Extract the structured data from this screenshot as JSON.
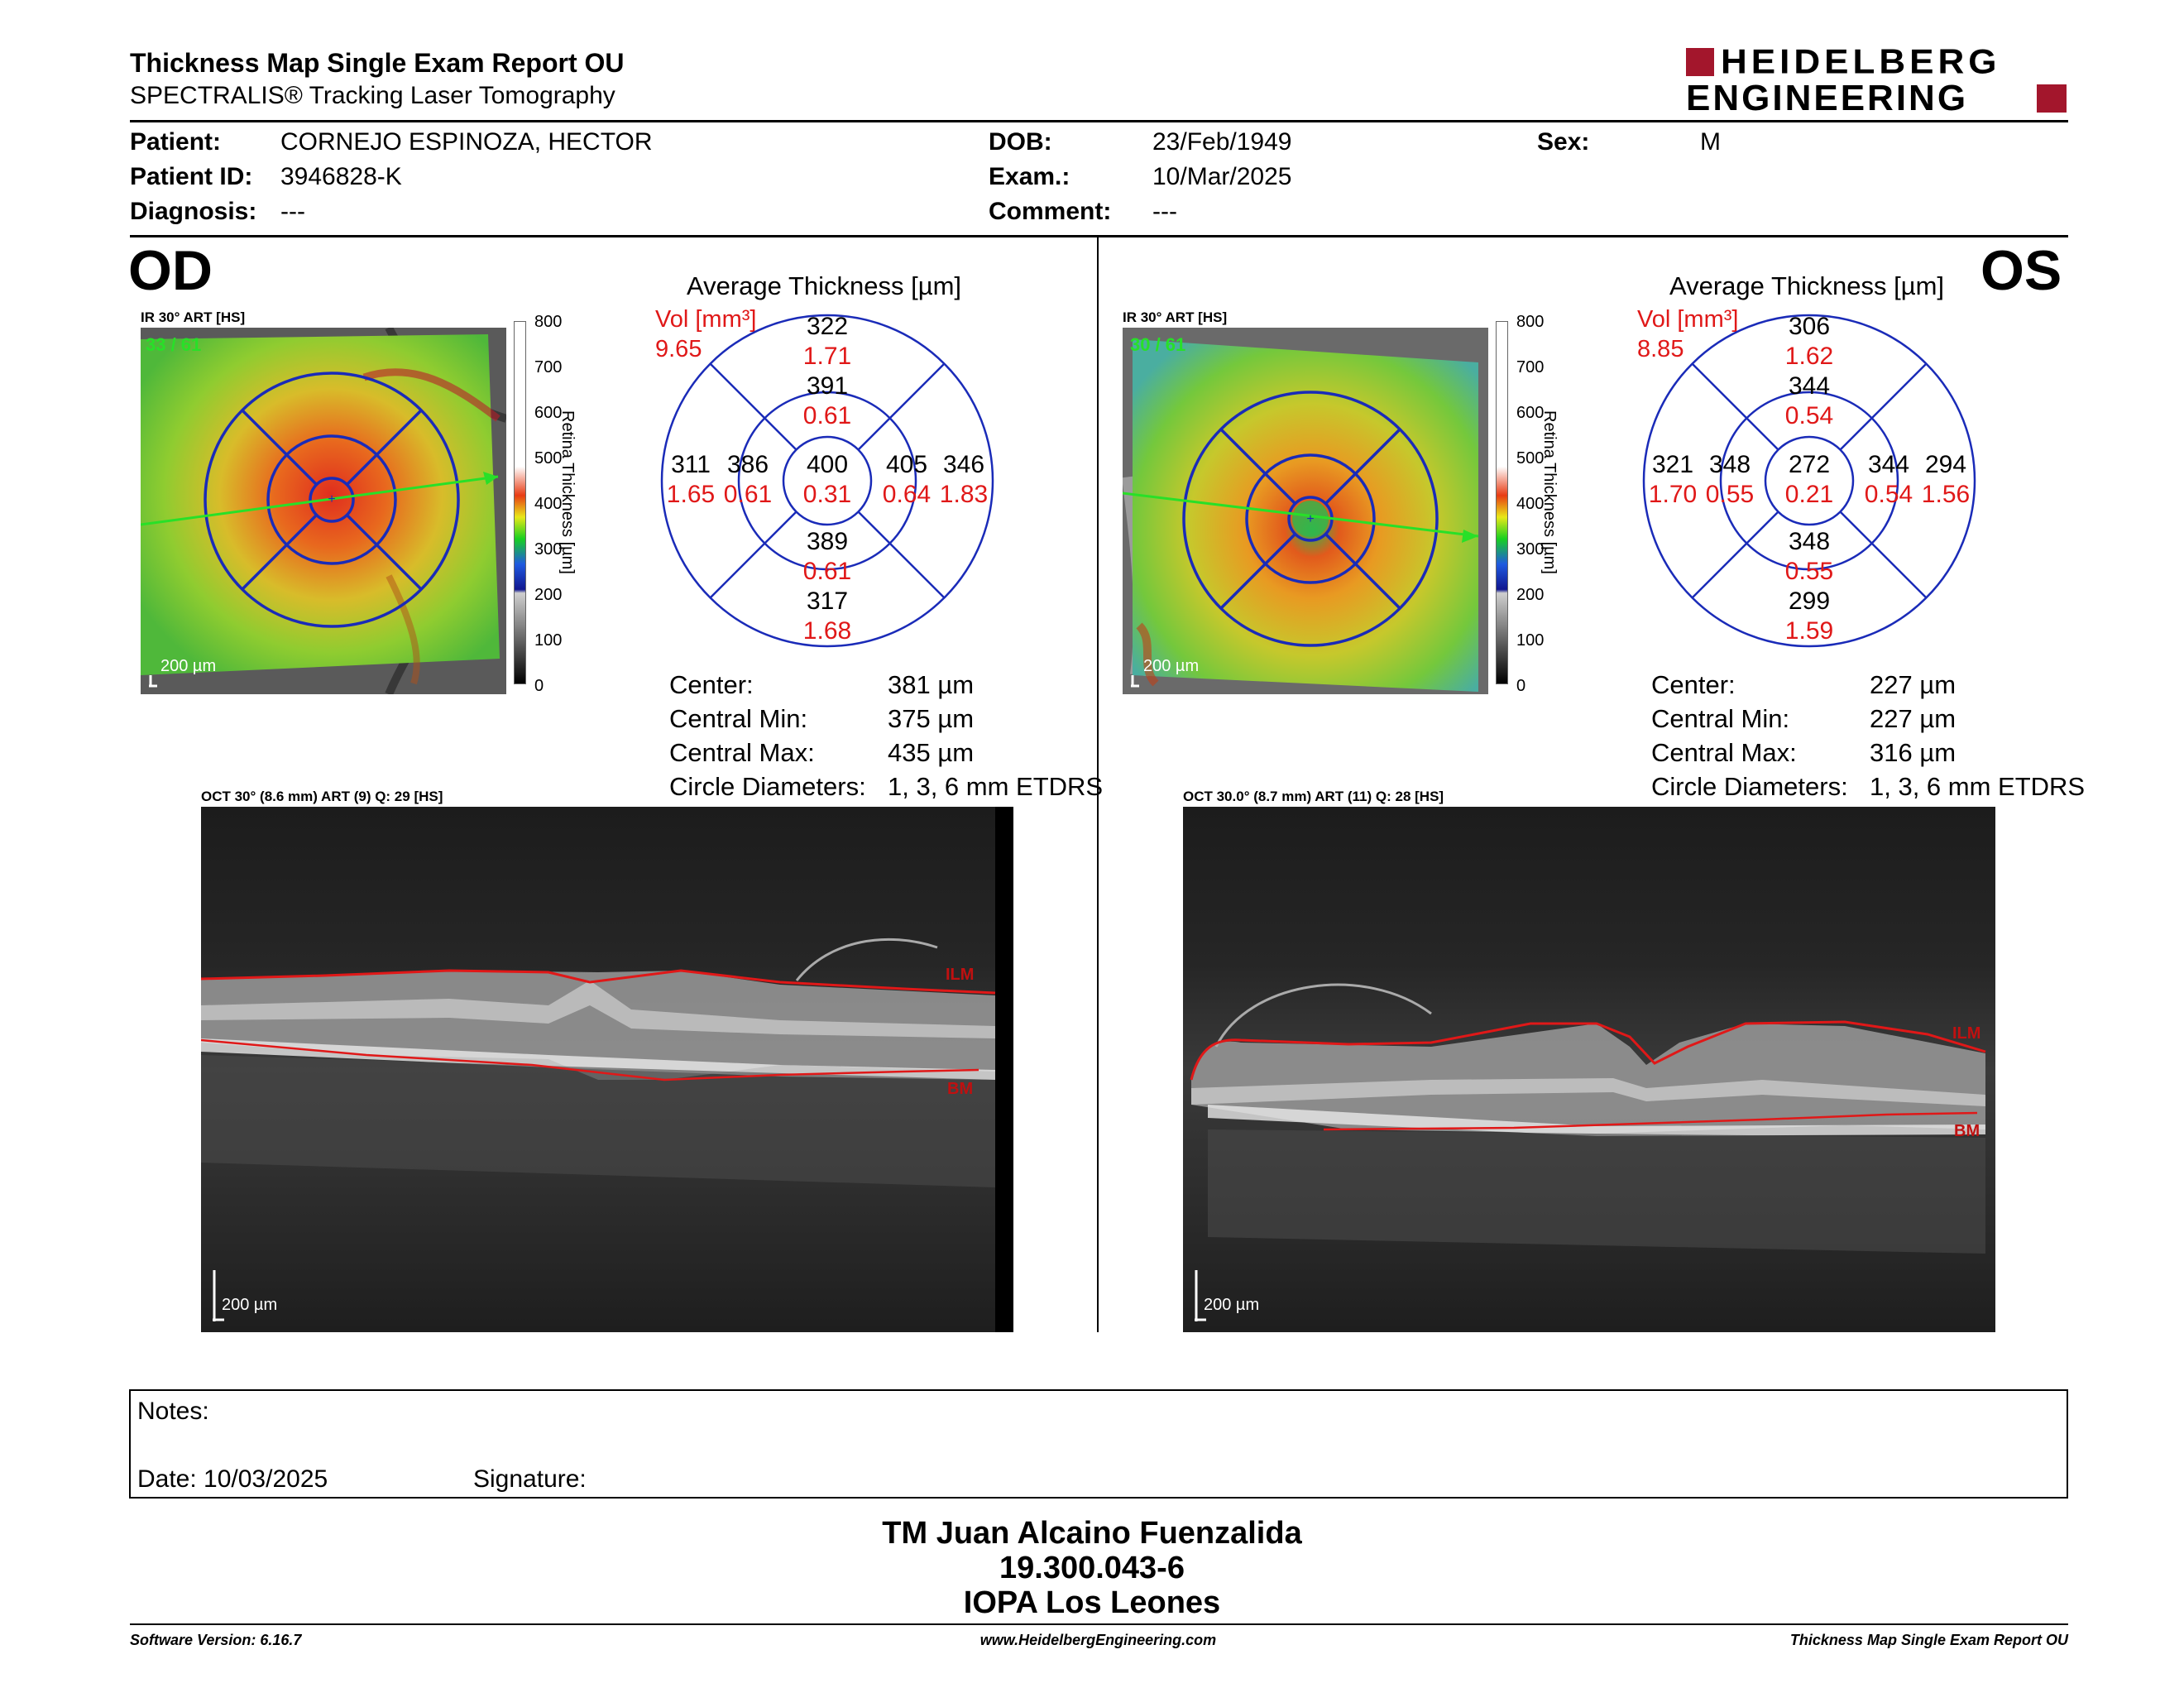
{
  "header": {
    "title": "Thickness Map Single Exam Report OU",
    "subtitle": "SPECTRALIS® Tracking Laser Tomography",
    "logo_line1": "HEIDELBERG",
    "logo_line2": "ENGINEERING"
  },
  "patient": {
    "patient_label": "Patient:",
    "patient_value": "CORNEJO ESPINOZA, HECTOR",
    "id_label": "Patient ID:",
    "id_value": "3946828-K",
    "diagnosis_label": "Diagnosis:",
    "diagnosis_value": "---",
    "dob_label": "DOB:",
    "dob_value": "23/Feb/1949",
    "exam_label": "Exam.:",
    "exam_value": "10/Mar/2025",
    "comment_label": "Comment:",
    "comment_value": "---",
    "sex_label": "Sex:",
    "sex_value": "M"
  },
  "colorbar": {
    "ticks": [
      "800",
      "700",
      "600",
      "500",
      "400",
      "300",
      "200",
      "100",
      "0"
    ],
    "label": "Retina Thickness [µm]"
  },
  "od": {
    "eye": "OD",
    "ir_caption": "IR 30° ART [HS]",
    "ir_counter": "33 / 61",
    "ir_scale": "200 µm",
    "avg_title": "Average Thickness [µm]",
    "vol_label": "Vol [mm³]",
    "vol_value": "9.65",
    "grid": {
      "outer_top": "322",
      "outer_top_vol": "1.71",
      "inner_top": "391",
      "inner_top_vol": "0.61",
      "outer_left": "311",
      "outer_left_vol": "1.65",
      "inner_left": "386",
      "inner_left_vol": "0.61",
      "center": "400",
      "center_vol": "0.31",
      "inner_right": "405",
      "inner_right_vol": "0.64",
      "outer_right": "346",
      "outer_right_vol": "1.83",
      "inner_bottom": "389",
      "inner_bottom_vol": "0.61",
      "outer_bottom": "317",
      "outer_bottom_vol": "1.68"
    },
    "stats": {
      "center_label": "Center:",
      "center_value": "381 µm",
      "cmin_label": "Central Min:",
      "cmin_value": "375 µm",
      "cmax_label": "Central Max:",
      "cmax_value": "435 µm",
      "diam_label": "Circle Diameters:",
      "diam_value": "1, 3, 6 mm ETDRS"
    },
    "oct_caption": "OCT 30° (8.6 mm) ART (9) Q: 29 [HS]",
    "oct_scale": "200 µm",
    "ilm": "ILM",
    "bm": "BM"
  },
  "os": {
    "eye": "OS",
    "ir_caption": "IR 30° ART [HS]",
    "ir_counter": "30 / 61",
    "ir_scale": "200 µm",
    "avg_title": "Average Thickness [µm]",
    "vol_label": "Vol [mm³]",
    "vol_value": "8.85",
    "grid": {
      "outer_top": "306",
      "outer_top_vol": "1.62",
      "inner_top": "344",
      "inner_top_vol": "0.54",
      "outer_left": "321",
      "outer_left_vol": "1.70",
      "inner_left": "348",
      "inner_left_vol": "0.55",
      "center": "272",
      "center_vol": "0.21",
      "inner_right": "344",
      "inner_right_vol": "0.54",
      "outer_right": "294",
      "outer_right_vol": "1.56",
      "inner_bottom": "348",
      "inner_bottom_vol": "0.55",
      "outer_bottom": "299",
      "outer_bottom_vol": "1.59"
    },
    "stats": {
      "center_label": "Center:",
      "center_value": "227 µm",
      "cmin_label": "Central Min:",
      "cmin_value": "227 µm",
      "cmax_label": "Central Max:",
      "cmax_value": "316 µm",
      "diam_label": "Circle Diameters:",
      "diam_value": "1, 3, 6 mm ETDRS"
    },
    "oct_caption": "OCT 30.0° (8.7 mm) ART (11) Q: 28 [HS]",
    "oct_scale": "200 µm",
    "ilm": "ILM",
    "bm": "BM"
  },
  "notes": {
    "notes_label": "Notes:",
    "date_label": "Date: 10/03/2025",
    "signature_label": "Signature:"
  },
  "signer": {
    "name": "TM Juan Alcaino Fuenzalida",
    "rut": "19.300.043-6",
    "institution": "IOPA Los Leones"
  },
  "footer": {
    "software": "Software Version: 6.16.7",
    "website": "www.HeidelbergEngineering.com",
    "report": "Thickness Map Single Exam Report OU"
  },
  "colors": {
    "grid_blue": "#1a2bb8",
    "vol_red": "#e01818",
    "counter_green": "#28e028",
    "logo_red": "#a3162c"
  }
}
